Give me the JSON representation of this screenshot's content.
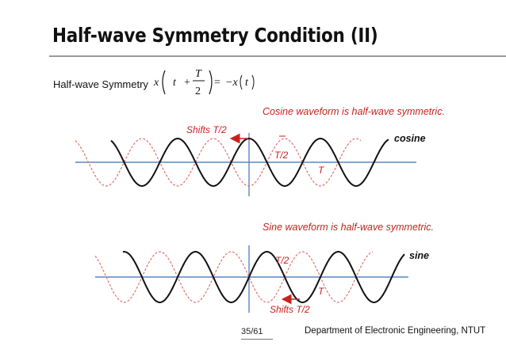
{
  "slide": {
    "title": "Half-wave Symmetry Condition (II)",
    "definition_label": "Half-wave Symmetry",
    "formula": {
      "lhs": "x",
      "arg_var": "t",
      "plus": "+",
      "frac_num": "T",
      "frac_den": "2",
      "equals": "=",
      "rhs": "−x",
      "rhs_arg": "t"
    },
    "page_number": "35/61",
    "footer": "Department of Electronic Engineering, NTUT"
  },
  "cosine_panel": {
    "caption": "Cosine waveform is half-wave symmetric.",
    "shift_label": "Shifts T/2",
    "half_period_label": "T/2",
    "period_label": "T",
    "waveform_name": "cosine",
    "original_color": "#111111",
    "shifted_color": "#e07070",
    "axis_color": "#5b85c0",
    "arrow_color": "#cc1f1f"
  },
  "sine_panel": {
    "caption": "Sine waveform is half-wave symmetric.",
    "shift_label": "Shifts T/2",
    "half_period_label": "T/2",
    "period_label": "T",
    "waveform_name": "sine",
    "original_color": "#111111",
    "shifted_color": "#e07070",
    "axis_color": "#5b85c0",
    "arrow_color": "#cc1f1f"
  }
}
